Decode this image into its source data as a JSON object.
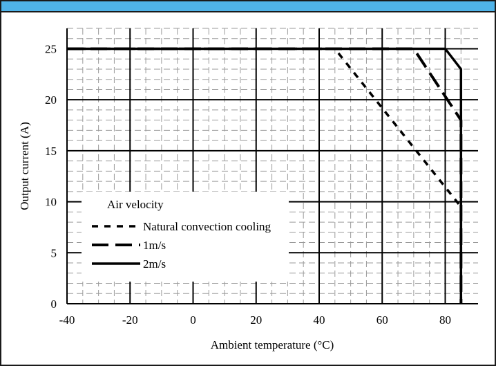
{
  "chart_data": {
    "type": "line",
    "title": "",
    "xlabel": "Ambient temperature (°C)",
    "ylabel": "Output current (A)",
    "xlim": [
      -40,
      90
    ],
    "ylim": [
      0,
      27
    ],
    "x_ticks": [
      -40,
      -20,
      0,
      20,
      40,
      60,
      80
    ],
    "y_ticks": [
      0,
      5,
      10,
      15,
      20,
      25
    ],
    "x_tick_labels": [
      "-40",
      "-20",
      "0",
      "20",
      "40",
      "60",
      "80"
    ],
    "y_tick_labels": [
      "0",
      "5",
      "10",
      "15",
      "20",
      "25"
    ],
    "grid": "major solid, minor dashed",
    "legend": {
      "title": "Air velocity",
      "placement": "lower-left"
    },
    "series": [
      {
        "name": "Natural convection cooling",
        "style": "dotted",
        "x": [
          -40,
          45,
          85,
          85
        ],
        "y": [
          25,
          25,
          9.5,
          0
        ]
      },
      {
        "name": "1m/s",
        "style": "dashed",
        "x": [
          -40,
          70,
          85,
          85
        ],
        "y": [
          25,
          25,
          18,
          0
        ]
      },
      {
        "name": "2m/s",
        "style": "solid",
        "x": [
          -40,
          80,
          85,
          85
        ],
        "y": [
          25,
          25,
          23,
          0
        ]
      }
    ]
  },
  "colors": {
    "header_bar": "#4fb3e8",
    "line": "#000000"
  }
}
